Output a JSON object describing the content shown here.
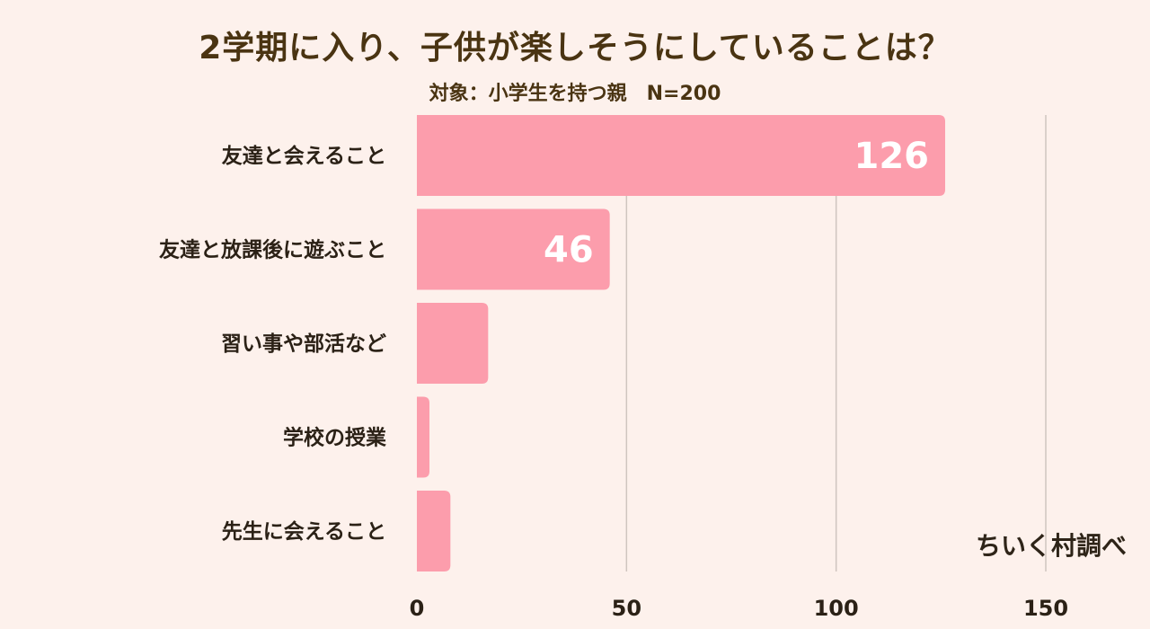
{
  "header": {
    "title": "2学期に入り、子供が楽しそうにしていることは？",
    "subtitle": "対象：小学生を持つ親　N=200"
  },
  "footer": {
    "credit": "ちいく村調べ"
  },
  "colors": {
    "bar": "#fc9dac",
    "background": "#fdf1ec",
    "grid": "#cfc5bf",
    "text": "#2b2116"
  },
  "chart_data": {
    "type": "bar",
    "orientation": "horizontal",
    "categories": [
      "友達と会えること",
      "友達と放課後に遊ぶこと",
      "習い事や部活など",
      "学校の授業",
      "先生に会えること"
    ],
    "values": [
      126,
      46,
      17,
      3,
      8
    ],
    "value_labels": [
      "126",
      "46",
      "",
      "",
      ""
    ],
    "xlim": [
      0,
      150
    ],
    "xticks": [
      0,
      50,
      100,
      150
    ],
    "grid": true
  }
}
